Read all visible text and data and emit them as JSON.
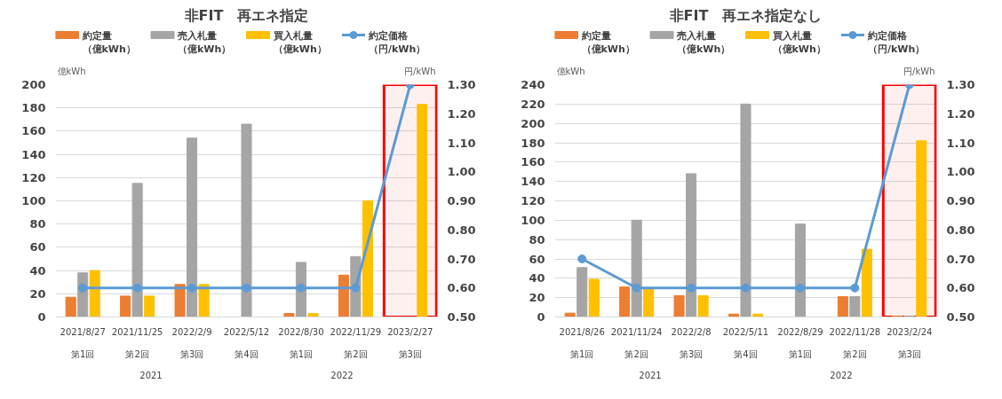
{
  "chart_data": [
    {
      "type": "bar",
      "title": "非FIT　再エネ指定",
      "ylabel": "億kWh",
      "y2label": "円/kWh",
      "categories": [
        "2021/8/27",
        "2021/11/25",
        "2022/2/9",
        "2022/5/12",
        "2022/8/30",
        "2022/11/29",
        "2023/2/27"
      ],
      "series": [
        {
          "name": "約定量（億kWh）",
          "color": "#ed7d31",
          "values": [
            17,
            18,
            28,
            0,
            3,
            36,
            0
          ]
        },
        {
          "name": "売入札量（億kWh）",
          "color": "#a5a5a5",
          "values": [
            38,
            115,
            154,
            166,
            47,
            52,
            0
          ]
        },
        {
          "name": "買入札量（億kWh）",
          "color": "#ffc000",
          "values": [
            40,
            18,
            28,
            0,
            3,
            100,
            183
          ]
        },
        {
          "name": "約定価格（円/kWh）",
          "color": "#5b9bd5",
          "type": "line",
          "axis": "y2",
          "marker": "circle",
          "values": [
            0.6,
            0.6,
            0.6,
            0.6,
            0.6,
            0.6,
            1.3
          ]
        }
      ],
      "ylim": [
        0,
        200
      ],
      "yticks": [
        0,
        20,
        40,
        60,
        80,
        100,
        120,
        140,
        160,
        180,
        200
      ],
      "y2lim": [
        0.5,
        1.3
      ],
      "y2ticks": [
        {
          "value": 0.5,
          "label": "0.50"
        },
        {
          "value": 0.6,
          "label": "0.60"
        },
        {
          "value": 0.7,
          "label": "0.70"
        },
        {
          "value": 0.8,
          "label": "0.80"
        },
        {
          "value": 0.9,
          "label": "0.90"
        },
        {
          "value": 1.0,
          "label": "1.00"
        },
        {
          "value": 1.1,
          "label": "1.10"
        },
        {
          "value": 1.2,
          "label": "1.20"
        },
        {
          "value": 1.3,
          "label": "1.30"
        }
      ],
      "grid": "y",
      "legend": "top",
      "bands": [
        {
          "axis": "x",
          "from": "2023/2/27",
          "to": "2023/2/27",
          "color": "#ff0000"
        }
      ],
      "annotations": [
        "第1回",
        "第2回",
        "第3回",
        "第4回",
        "第1回",
        "第2回",
        "第3回",
        "2021",
        "2022"
      ]
    },
    {
      "type": "bar",
      "title": "非FIT　再エネ指定なし",
      "ylabel": "億kWh",
      "y2label": "円/kWh",
      "categories": [
        "2021/8/26",
        "2021/11/24",
        "2022/2/8",
        "2022/5/11",
        "2022/8/29",
        "2022/11/28",
        "2023/2/24"
      ],
      "series": [
        {
          "name": "約定量（億kWh）",
          "color": "#ed7d31",
          "values": [
            4,
            31,
            22,
            3,
            0,
            21,
            1
          ]
        },
        {
          "name": "売入札量（億kWh）",
          "color": "#a5a5a5",
          "values": [
            51,
            100,
            148,
            220,
            96,
            21,
            1
          ]
        },
        {
          "name": "買入札量（億kWh）",
          "color": "#ffc000",
          "values": [
            39,
            30,
            22,
            3,
            0,
            70,
            182
          ]
        },
        {
          "name": "約定価格（円/kWh）",
          "color": "#5b9bd5",
          "type": "line",
          "axis": "y2",
          "marker": "circle",
          "values": [
            0.7,
            0.6,
            0.6,
            0.6,
            0.6,
            0.6,
            1.3
          ]
        }
      ],
      "ylim": [
        0,
        240
      ],
      "yticks": [
        0,
        20,
        40,
        60,
        80,
        100,
        120,
        140,
        160,
        180,
        200,
        220,
        240
      ],
      "y2lim": [
        0.5,
        1.3
      ],
      "y2ticks": [
        {
          "value": 0.5,
          "label": "0.50"
        },
        {
          "value": 0.6,
          "label": "0.60"
        },
        {
          "value": 0.7,
          "label": "0.70"
        },
        {
          "value": 0.8,
          "label": "0.80"
        },
        {
          "value": 0.9,
          "label": "0.90"
        },
        {
          "value": 1.0,
          "label": "1.00"
        },
        {
          "value": 1.1,
          "label": "1.10"
        },
        {
          "value": 1.2,
          "label": "1.20"
        },
        {
          "value": 1.3,
          "label": "1.30"
        }
      ],
      "grid": "y",
      "legend": "top",
      "bands": [
        {
          "axis": "x",
          "from": "2023/2/24",
          "to": "2023/2/24",
          "color": "#ff0000"
        }
      ],
      "annotations": [
        "第1回",
        "第2回",
        "第3回",
        "第4回",
        "第1回",
        "第2回",
        "第3回",
        "2021",
        "2022"
      ]
    }
  ]
}
